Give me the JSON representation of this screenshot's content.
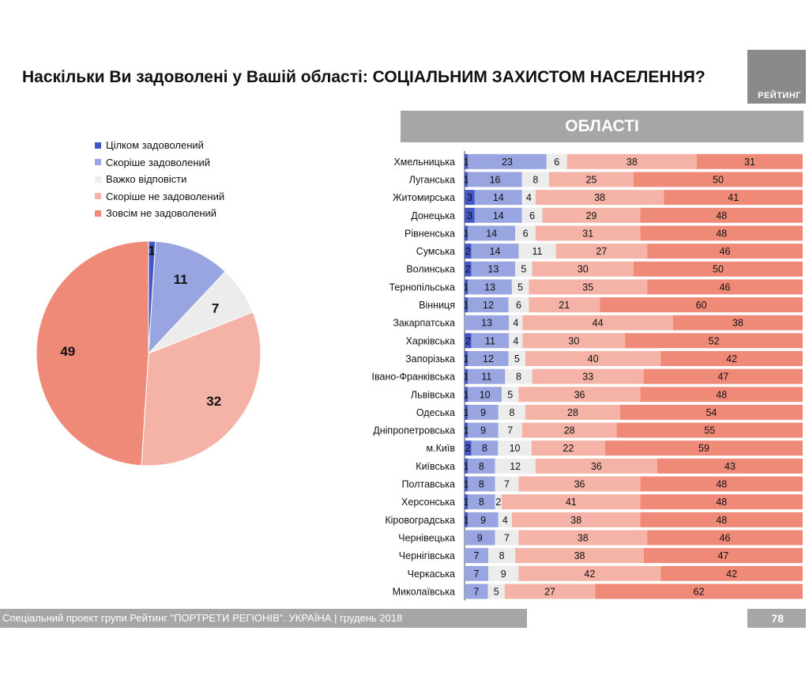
{
  "header": {
    "title": "Наскільки Ви задоволені у Вашій області: СОЦІАЛЬНИМ ЗАХИСТОМ НАСЕЛЕННЯ?",
    "logo_text": "РЕЙТИНГ",
    "band_label": "ОБЛАСТІ"
  },
  "legend": {
    "items": [
      "Цілком задоволений",
      "Скоріше задоволений",
      "Важко відповісти",
      "Скоріше не задоволений",
      "Зовсім не задоволений"
    ]
  },
  "colors": [
    "#4358c7",
    "#98a5e0",
    "#ececec",
    "#f5b3a7",
    "#f08a78"
  ],
  "chart_data": [
    {
      "type": "pie",
      "title": "",
      "categories": [
        "Цілком задоволений",
        "Скоріше задоволений",
        "Важко відповісти",
        "Скоріше не задоволений",
        "Зовсім не задоволений"
      ],
      "values": [
        1,
        11,
        7,
        32,
        49
      ]
    },
    {
      "type": "bar",
      "orientation": "horizontal",
      "stacked": true,
      "title": "ОБЛАСТІ",
      "series_names": [
        "Цілком задоволений",
        "Скоріше задоволений",
        "Важко відповісти",
        "Скоріше не задоволений",
        "Зовсім не задоволений"
      ],
      "rows": [
        {
          "region": "Хмельницька",
          "values": [
            1,
            23,
            6,
            38,
            31
          ]
        },
        {
          "region": "Луганська",
          "values": [
            1,
            16,
            8,
            25,
            50
          ]
        },
        {
          "region": "Житомирська",
          "values": [
            3,
            14,
            4,
            38,
            41
          ]
        },
        {
          "region": "Донецька",
          "values": [
            3,
            14,
            6,
            29,
            48
          ]
        },
        {
          "region": "Рівненська",
          "values": [
            1,
            14,
            6,
            31,
            48
          ]
        },
        {
          "region": "Сумська",
          "values": [
            2,
            14,
            11,
            27,
            46
          ]
        },
        {
          "region": "Волинська",
          "values": [
            2,
            13,
            5,
            30,
            50
          ]
        },
        {
          "region": "Тернопільська",
          "values": [
            1,
            13,
            5,
            35,
            46
          ]
        },
        {
          "region": "Вінниця",
          "values": [
            1,
            12,
            6,
            21,
            60
          ]
        },
        {
          "region": "Закарпатська",
          "values": [
            0,
            13,
            4,
            44,
            38
          ]
        },
        {
          "region": "Харківська",
          "values": [
            2,
            11,
            4,
            30,
            52
          ]
        },
        {
          "region": "Запорізька",
          "values": [
            1,
            12,
            5,
            40,
            42
          ]
        },
        {
          "region": "Івано-Франківська",
          "values": [
            1,
            11,
            8,
            33,
            47
          ]
        },
        {
          "region": "Львівська",
          "values": [
            1,
            10,
            5,
            36,
            48
          ]
        },
        {
          "region": "Одеська",
          "values": [
            1,
            9,
            8,
            28,
            54
          ]
        },
        {
          "region": "Дніпропетровська",
          "values": [
            1,
            9,
            7,
            28,
            55
          ]
        },
        {
          "region": "м.Київ",
          "values": [
            2,
            8,
            10,
            22,
            59
          ]
        },
        {
          "region": "Київська",
          "values": [
            1,
            8,
            12,
            36,
            43
          ]
        },
        {
          "region": "Полтавська",
          "values": [
            1,
            8,
            7,
            36,
            48
          ]
        },
        {
          "region": "Херсонська",
          "values": [
            1,
            8,
            2,
            41,
            48
          ]
        },
        {
          "region": "Кіровоградська",
          "values": [
            1,
            9,
            4,
            38,
            48
          ]
        },
        {
          "region": "Чернівецька",
          "values": [
            0,
            9,
            7,
            38,
            46
          ]
        },
        {
          "region": "Чернігівська",
          "values": [
            0,
            7,
            8,
            38,
            47
          ]
        },
        {
          "region": "Черкаська",
          "values": [
            0,
            7,
            9,
            42,
            42
          ]
        },
        {
          "region": "Миколаївська",
          "values": [
            0,
            7,
            5,
            27,
            62
          ]
        }
      ]
    }
  ],
  "footer": {
    "text": "Спеціальний проект групи Рейтинг \"ПОРТРЕТИ РЕГІОНІВ\". УКРАЇНА | грудень 2018",
    "page_number": "78"
  }
}
